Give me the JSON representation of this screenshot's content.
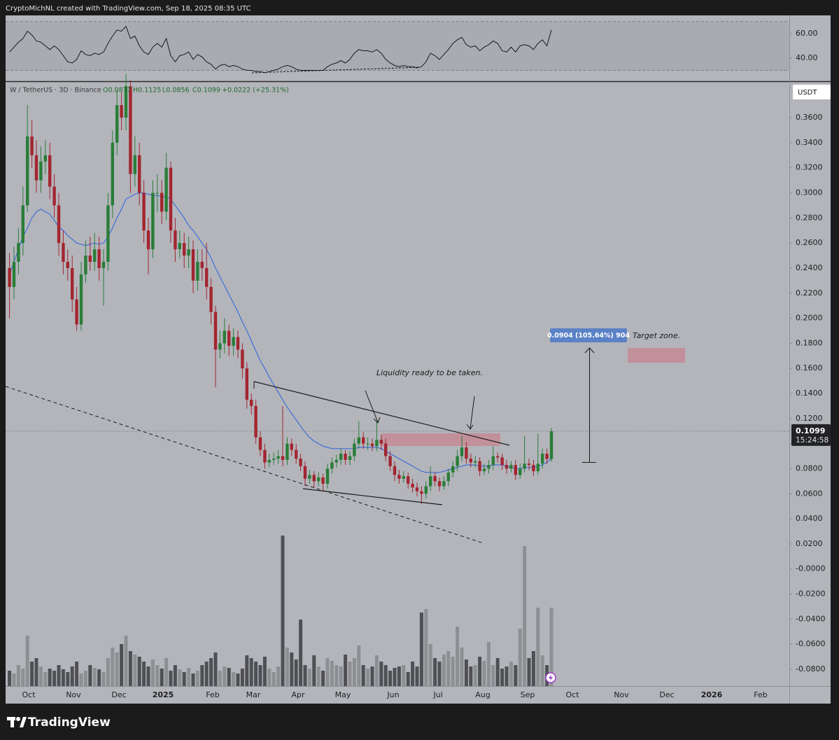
{
  "header": "CryptoMichNL created with TradingView.com, Sep 18, 2025 08:35 UTC",
  "branding": "TradingView",
  "chart_data": [
    {
      "type": "candlestick",
      "symbol": "W / TetherUS · 3D · Binance",
      "ohlc_labels": [
        "O0.0877",
        "H0.1125",
        "L0.0856",
        "C0.1099",
        "+0.0222 (+25.31%)"
      ],
      "currency": "USDT",
      "countdown": "15:24:58",
      "open": [
        0.24,
        0.225,
        0.245,
        0.26,
        0.29,
        0.345,
        0.33,
        0.31,
        0.325,
        0.33,
        0.305,
        0.29,
        0.26,
        0.245,
        0.24,
        0.215,
        0.195,
        0.235,
        0.25,
        0.245,
        0.255,
        0.24,
        0.245,
        0.29,
        0.34,
        0.37,
        0.36,
        0.385,
        0.315,
        0.33,
        0.3,
        0.27,
        0.255,
        0.3,
        0.3,
        0.285,
        0.32,
        0.27,
        0.255,
        0.26,
        0.25,
        0.255,
        0.23,
        0.245,
        0.24,
        0.225,
        0.205,
        0.175,
        0.18,
        0.19,
        0.178,
        0.185,
        0.175,
        0.16,
        0.135,
        0.13,
        0.105,
        0.095,
        0.085,
        0.087,
        0.088,
        0.09,
        0.087,
        0.1,
        0.095,
        0.088,
        0.082,
        0.072,
        0.075,
        0.07,
        0.073,
        0.068,
        0.08,
        0.085,
        0.087,
        0.092,
        0.087,
        0.09,
        0.1,
        0.105,
        0.1,
        0.1,
        0.098,
        0.103,
        0.1,
        0.09,
        0.082,
        0.075,
        0.072,
        0.074,
        0.068,
        0.065,
        0.062,
        0.06,
        0.066,
        0.074,
        0.07,
        0.066,
        0.07,
        0.077,
        0.082,
        0.09,
        0.097,
        0.088,
        0.085,
        0.086,
        0.078,
        0.08,
        0.083,
        0.09,
        0.089,
        0.083,
        0.08,
        0.083,
        0.075,
        0.08,
        0.084,
        0.083,
        0.078,
        0.084,
        0.092,
        0.0877
      ],
      "high": [
        0.252,
        0.257,
        0.272,
        0.305,
        0.37,
        0.358,
        0.342,
        0.337,
        0.342,
        0.34,
        0.315,
        0.3,
        0.27,
        0.255,
        0.25,
        0.225,
        0.245,
        0.262,
        0.265,
        0.268,
        0.265,
        0.255,
        0.3,
        0.35,
        0.382,
        0.38,
        0.395,
        0.39,
        0.345,
        0.34,
        0.31,
        0.28,
        0.31,
        0.315,
        0.31,
        0.332,
        0.325,
        0.28,
        0.27,
        0.268,
        0.265,
        0.262,
        0.255,
        0.255,
        0.26,
        0.232,
        0.21,
        0.19,
        0.2,
        0.195,
        0.192,
        0.19,
        0.18,
        0.165,
        0.14,
        0.135,
        0.11,
        0.1,
        0.092,
        0.093,
        0.095,
        0.13,
        0.105,
        0.104,
        0.1,
        0.092,
        0.086,
        0.079,
        0.078,
        0.077,
        0.076,
        0.084,
        0.089,
        0.091,
        0.096,
        0.095,
        0.094,
        0.104,
        0.118,
        0.109,
        0.105,
        0.104,
        0.118,
        0.107,
        0.104,
        0.094,
        0.086,
        0.079,
        0.078,
        0.077,
        0.072,
        0.069,
        0.066,
        0.07,
        0.082,
        0.077,
        0.073,
        0.074,
        0.08,
        0.086,
        0.095,
        0.106,
        0.101,
        0.092,
        0.09,
        0.089,
        0.084,
        0.087,
        0.098,
        0.093,
        0.092,
        0.087,
        0.086,
        0.087,
        0.084,
        0.106,
        0.088,
        0.087,
        0.108,
        0.096,
        0.096,
        0.1125
      ],
      "low": [
        0.2,
        0.215,
        0.235,
        0.25,
        0.285,
        0.32,
        0.3,
        0.3,
        0.315,
        0.295,
        0.28,
        0.25,
        0.235,
        0.23,
        0.205,
        0.19,
        0.19,
        0.228,
        0.238,
        0.238,
        0.23,
        0.21,
        0.238,
        0.28,
        0.33,
        0.35,
        0.35,
        0.3,
        0.305,
        0.29,
        0.26,
        0.235,
        0.248,
        0.285,
        0.275,
        0.278,
        0.26,
        0.245,
        0.248,
        0.24,
        0.24,
        0.22,
        0.222,
        0.23,
        0.215,
        0.195,
        0.145,
        0.168,
        0.172,
        0.17,
        0.17,
        0.168,
        0.152,
        0.128,
        0.123,
        0.1,
        0.09,
        0.08,
        0.081,
        0.083,
        0.084,
        0.082,
        0.083,
        0.09,
        0.084,
        0.078,
        0.066,
        0.068,
        0.065,
        0.066,
        0.063,
        0.064,
        0.076,
        0.081,
        0.083,
        0.083,
        0.083,
        0.086,
        0.096,
        0.096,
        0.095,
        0.094,
        0.094,
        0.095,
        0.086,
        0.078,
        0.07,
        0.068,
        0.069,
        0.064,
        0.061,
        0.058,
        0.052,
        0.056,
        0.062,
        0.066,
        0.062,
        0.063,
        0.066,
        0.073,
        0.078,
        0.086,
        0.084,
        0.081,
        0.081,
        0.074,
        0.075,
        0.076,
        0.079,
        0.085,
        0.079,
        0.076,
        0.077,
        0.071,
        0.072,
        0.077,
        0.079,
        0.074,
        0.075,
        0.08,
        0.084,
        0.0856
      ],
      "close": [
        0.225,
        0.245,
        0.26,
        0.29,
        0.345,
        0.33,
        0.31,
        0.325,
        0.33,
        0.305,
        0.29,
        0.26,
        0.245,
        0.24,
        0.215,
        0.195,
        0.235,
        0.25,
        0.245,
        0.255,
        0.24,
        0.245,
        0.29,
        0.34,
        0.37,
        0.36,
        0.385,
        0.315,
        0.33,
        0.3,
        0.27,
        0.255,
        0.3,
        0.3,
        0.285,
        0.32,
        0.27,
        0.255,
        0.26,
        0.25,
        0.255,
        0.23,
        0.245,
        0.24,
        0.225,
        0.205,
        0.175,
        0.18,
        0.19,
        0.178,
        0.185,
        0.175,
        0.16,
        0.135,
        0.13,
        0.105,
        0.095,
        0.085,
        0.087,
        0.088,
        0.09,
        0.087,
        0.1,
        0.095,
        0.088,
        0.082,
        0.072,
        0.075,
        0.07,
        0.073,
        0.068,
        0.08,
        0.085,
        0.087,
        0.092,
        0.087,
        0.09,
        0.1,
        0.105,
        0.1,
        0.1,
        0.098,
        0.103,
        0.1,
        0.09,
        0.082,
        0.075,
        0.072,
        0.074,
        0.068,
        0.065,
        0.062,
        0.06,
        0.066,
        0.074,
        0.07,
        0.066,
        0.07,
        0.077,
        0.082,
        0.09,
        0.097,
        0.088,
        0.085,
        0.086,
        0.078,
        0.08,
        0.083,
        0.09,
        0.089,
        0.083,
        0.08,
        0.083,
        0.075,
        0.08,
        0.084,
        0.083,
        0.078,
        0.084,
        0.092,
        0.0877,
        0.1099
      ],
      "colors": {
        "up": "#2a7d38",
        "down": "#a3252f"
      },
      "ma": {
        "color": "#3f6fd8",
        "values": [
          0.235,
          0.245,
          0.255,
          0.265,
          0.272,
          0.28,
          0.285,
          0.287,
          0.285,
          0.283,
          0.278,
          0.273,
          0.27,
          0.266,
          0.263,
          0.26,
          0.259,
          0.258,
          0.259,
          0.26,
          0.259,
          0.26,
          0.265,
          0.272,
          0.28,
          0.287,
          0.295,
          0.297,
          0.299,
          0.3,
          0.3,
          0.299,
          0.298,
          0.298,
          0.297,
          0.297,
          0.295,
          0.29,
          0.285,
          0.28,
          0.274,
          0.27,
          0.265,
          0.26,
          0.255,
          0.248,
          0.24,
          0.233,
          0.226,
          0.219,
          0.212,
          0.205,
          0.197,
          0.19,
          0.182,
          0.174,
          0.166,
          0.16,
          0.153,
          0.147,
          0.141,
          0.135,
          0.129,
          0.124,
          0.119,
          0.114,
          0.109,
          0.105,
          0.102,
          0.1,
          0.098,
          0.097,
          0.096,
          0.096,
          0.096,
          0.096,
          0.096,
          0.096,
          0.097,
          0.097,
          0.097,
          0.097,
          0.097,
          0.096,
          0.094,
          0.092,
          0.09,
          0.088,
          0.086,
          0.084,
          0.082,
          0.08,
          0.078,
          0.077,
          0.077,
          0.077,
          0.077,
          0.078,
          0.079,
          0.08,
          0.081,
          0.082,
          0.083,
          0.083,
          0.083,
          0.082,
          0.082,
          0.082,
          0.083,
          0.083,
          0.083,
          0.082,
          0.081,
          0.08,
          0.08,
          0.081,
          0.081,
          0.081,
          0.082,
          0.083,
          0.085,
          0.088
        ]
      },
      "volume": {
        "up_color": "#8e8f93",
        "down_color": "#4f5054",
        "ylim": [
          0,
          400
        ],
        "values": [
          22,
          18,
          30,
          25,
          72,
          35,
          40,
          28,
          20,
          25,
          22,
          30,
          24,
          20,
          28,
          35,
          18,
          22,
          30,
          26,
          24,
          20,
          40,
          55,
          48,
          60,
          72,
          50,
          45,
          42,
          35,
          28,
          38,
          30,
          25,
          40,
          22,
          30,
          24,
          20,
          26,
          18,
          22,
          30,
          35,
          40,
          48,
          22,
          28,
          26,
          20,
          18,
          25,
          44,
          40,
          35,
          30,
          42,
          25,
          20,
          28,
          215,
          55,
          48,
          38,
          95,
          30,
          25,
          44,
          28,
          22,
          40,
          36,
          30,
          28,
          45,
          35,
          40,
          58,
          30,
          25,
          28,
          44,
          35,
          30,
          22,
          26,
          28,
          30,
          20,
          35,
          28,
          105,
          110,
          60,
          40,
          35,
          45,
          50,
          42,
          85,
          55,
          38,
          28,
          30,
          42,
          36,
          63,
          30,
          40,
          25,
          28,
          35,
          30,
          82,
          200,
          40,
          50,
          112,
          44,
          30,
          112
        ]
      },
      "ylim": [
        -0.0934,
        0.3885
      ],
      "yticks": [
        {
          "value": 0.36,
          "label": "0.3600"
        },
        {
          "value": 0.34,
          "label": "0.3400"
        },
        {
          "value": 0.32,
          "label": "0.3200"
        },
        {
          "value": 0.3,
          "label": "0.3000"
        },
        {
          "value": 0.28,
          "label": "0.2800"
        },
        {
          "value": 0.26,
          "label": "0.2600"
        },
        {
          "value": 0.24,
          "label": "0.2400"
        },
        {
          "value": 0.22,
          "label": "0.2200"
        },
        {
          "value": 0.2,
          "label": "0.2000"
        },
        {
          "value": 0.18,
          "label": "0.1800"
        },
        {
          "value": 0.16,
          "label": "0.1600"
        },
        {
          "value": 0.14,
          "label": "0.1400"
        },
        {
          "value": 0.12,
          "label": "0.1200"
        },
        {
          "value": 0.1,
          "label": "0.1000"
        },
        {
          "value": 0.08,
          "label": "0.0800"
        },
        {
          "value": 0.06,
          "label": "0.0600"
        },
        {
          "value": 0.04,
          "label": "0.0400"
        },
        {
          "value": 0.02,
          "label": "0.0200"
        },
        {
          "value": 0,
          "label": "-0.0000"
        },
        {
          "value": -0.02,
          "label": "-0.0200"
        },
        {
          "value": -0.04,
          "label": "-0.0400"
        },
        {
          "value": -0.06,
          "label": "-0.0600"
        },
        {
          "value": -0.08,
          "label": "-0.0800"
        }
      ],
      "x_labels": [
        "Oct",
        "Nov",
        "Dec",
        "2025",
        "Feb",
        "Mar",
        "Apr",
        "May",
        "Jun",
        "Jul",
        "Aug",
        "Sep",
        "Oct",
        "Nov",
        "Dec",
        "2026",
        "Feb"
      ],
      "grid": false,
      "annotations": {
        "liquidity": "Liquidity ready to be taken.",
        "target": "Target zone.",
        "measure": "0.0904 (105.64%) 904"
      }
    },
    {
      "type": "line",
      "color": "#1a1a1a",
      "values": [
        45,
        49,
        53,
        56,
        62,
        59,
        54,
        53,
        50,
        47,
        50,
        47,
        42,
        37,
        36,
        39,
        46,
        43,
        42,
        44,
        43,
        45,
        52,
        58,
        63,
        62,
        66,
        56,
        58,
        50,
        45,
        43,
        49,
        52,
        49,
        56,
        42,
        37,
        42,
        43,
        45,
        39,
        43,
        41,
        37,
        35,
        31,
        34,
        35,
        33,
        34,
        33,
        31,
        30,
        30,
        29,
        29,
        28,
        29,
        30,
        31,
        33,
        34,
        33,
        31,
        30,
        30,
        30,
        30,
        30,
        30,
        33,
        35,
        36,
        38,
        36,
        39,
        44,
        47,
        46,
        46,
        45,
        47,
        44,
        39,
        36,
        34,
        33,
        34,
        33,
        33,
        32,
        33,
        37,
        44,
        42,
        39,
        43,
        47,
        52,
        55,
        57,
        51,
        49,
        50,
        46,
        49,
        51,
        54,
        52,
        46,
        45,
        49,
        45,
        50,
        51,
        50,
        47,
        52,
        55,
        50,
        63
      ],
      "band": [
        30,
        70
      ],
      "ylim": [
        21.7,
        74.9
      ],
      "yticks": [
        {
          "value": 60,
          "label": "60.00"
        },
        {
          "value": 40,
          "label": "40.00"
        }
      ]
    }
  ]
}
